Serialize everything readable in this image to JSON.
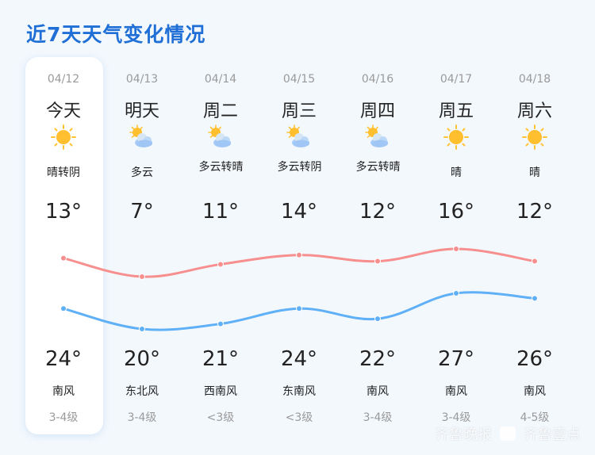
{
  "title": "近7天天气变化情况",
  "colors": {
    "accent": "#1f6fd6",
    "high_line": "#f78f8f",
    "low_line": "#5fb0f7"
  },
  "days": [
    {
      "date": "04/12",
      "day": "今天",
      "icon": "sun-icon",
      "desc": "晴转阴",
      "top_temp": "13°",
      "bottom_temp": "24°",
      "wind": "南风",
      "level": "3-4级"
    },
    {
      "date": "04/13",
      "day": "明天",
      "icon": "partly-cloudy-icon",
      "desc": "多云",
      "top_temp": "7°",
      "bottom_temp": "20°",
      "wind": "东北风",
      "level": "3-4级"
    },
    {
      "date": "04/14",
      "day": "周二",
      "icon": "partly-cloudy-icon",
      "desc": "多云转晴",
      "top_temp": "11°",
      "bottom_temp": "21°",
      "wind": "西南风",
      "level": "<3级"
    },
    {
      "date": "04/15",
      "day": "周三",
      "icon": "partly-cloudy-icon",
      "desc": "多云转阴",
      "top_temp": "14°",
      "bottom_temp": "24°",
      "wind": "东南风",
      "level": "<3级"
    },
    {
      "date": "04/16",
      "day": "周四",
      "icon": "partly-cloudy-icon",
      "desc": "多云转晴",
      "top_temp": "12°",
      "bottom_temp": "22°",
      "wind": "南风",
      "level": "3-4级"
    },
    {
      "date": "04/17",
      "day": "周五",
      "icon": "sun-icon",
      "desc": "晴",
      "top_temp": "16°",
      "bottom_temp": "27°",
      "wind": "南风",
      "level": "3-4级"
    },
    {
      "date": "04/18",
      "day": "周六",
      "icon": "sun-icon",
      "desc": "晴",
      "top_temp": "12°",
      "bottom_temp": "26°",
      "wind": "南风",
      "level": "4-5级"
    }
  ],
  "top_series": [
    13,
    7,
    11,
    14,
    12,
    16,
    12
  ],
  "bottom_series": [
    24,
    20,
    21,
    24,
    22,
    27,
    26
  ],
  "watermark": {
    "left": "齐鲁晚报",
    "right": "齐鲁壹点"
  }
}
